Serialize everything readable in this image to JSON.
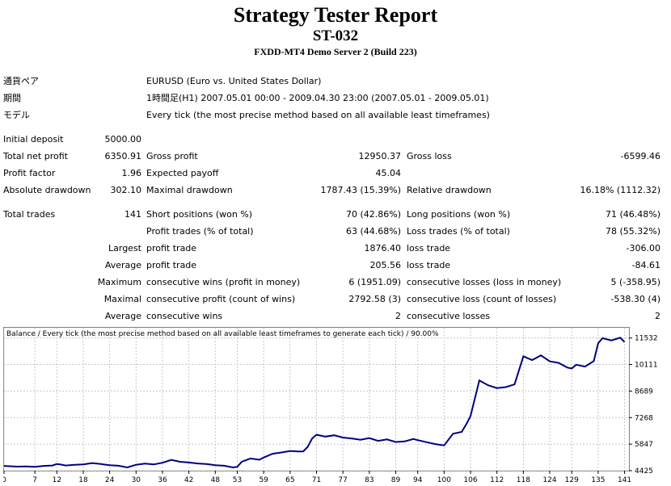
{
  "report": {
    "title": "Strategy Tester Report",
    "ea_name": "ST-032",
    "server": "FXDD-MT4 Demo Server 2 (Build 223)"
  },
  "info": {
    "symbol_label": "通貨ペア",
    "symbol_value": "EURUSD (Euro vs. United States Dollar)",
    "period_label": "期間",
    "period_value": "1時間足(H1) 2007.05.01 00:00 - 2009.04.30 23:00 (2007.05.01 - 2009.05.01)",
    "model_label": "モデル",
    "model_value": "Every tick (the most precise method based on all available least timeframes)"
  },
  "stats": {
    "initial_deposit_label": "Initial deposit",
    "initial_deposit": "5000.00",
    "total_net_profit_label": "Total net profit",
    "total_net_profit": "6350.91",
    "gross_profit_label": "Gross profit",
    "gross_profit": "12950.37",
    "gross_loss_label": "Gross loss",
    "gross_loss": "-6599.46",
    "profit_factor_label": "Profit factor",
    "profit_factor": "1.96",
    "expected_payoff_label": "Expected payoff",
    "expected_payoff": "45.04",
    "absolute_drawdown_label": "Absolute drawdown",
    "absolute_drawdown": "302.10",
    "maximal_drawdown_label": "Maximal drawdown",
    "maximal_drawdown": "1787.43 (15.39%)",
    "relative_drawdown_label": "Relative drawdown",
    "relative_drawdown": "16.18% (1112.32)",
    "total_trades_label": "Total trades",
    "total_trades": "141",
    "short_positions_label": "Short positions (won %)",
    "short_positions": "70 (42.86%)",
    "long_positions_label": "Long positions (won %)",
    "long_positions": "71 (46.48%)",
    "profit_trades_label": "Profit trades (% of total)",
    "profit_trades": "63 (44.68%)",
    "loss_trades_label": "Loss trades (% of total)",
    "loss_trades": "78 (55.32%)",
    "largest_label": "Largest",
    "largest_profit_label": "profit trade",
    "largest_profit": "1876.40",
    "largest_loss_label": "loss trade",
    "largest_loss": "-306.00",
    "average_label": "Average",
    "average_profit_label": "profit trade",
    "average_profit": "205.56",
    "average_loss_label": "loss trade",
    "average_loss": "-84.61",
    "maximum_label": "Maximum",
    "max_cons_wins_label": "consecutive wins (profit in money)",
    "max_cons_wins": "6 (1951.09)",
    "max_cons_losses_label": "consecutive losses (loss in money)",
    "max_cons_losses": "5 (-358.95)",
    "maximal_label": "Maximal",
    "maximal_cons_profit_label": "consecutive profit (count of wins)",
    "maximal_cons_profit": "2792.58 (3)",
    "maximal_cons_loss_label": "consecutive loss (count of losses)",
    "maximal_cons_loss": "-538.30 (4)",
    "average2_label": "Average",
    "avg_cons_wins_label": "consecutive wins",
    "avg_cons_wins": "2",
    "avg_cons_losses_label": "consecutive losses",
    "avg_cons_losses": "2"
  },
  "chart_data": {
    "type": "line",
    "title": "Balance / Every tick (the most precise method based on all available least timeframes to generate each tick) / 90.00%",
    "x_ticks": [
      0,
      7,
      12,
      18,
      24,
      30,
      36,
      42,
      48,
      53,
      59,
      65,
      71,
      77,
      83,
      89,
      94,
      100,
      106,
      112,
      118,
      124,
      129,
      135,
      141
    ],
    "y_ticks": [
      4425,
      5847,
      7268,
      8689,
      10111,
      11532
    ],
    "xlim": [
      0,
      142
    ],
    "ylim": [
      4425,
      12080
    ],
    "line_color": "#000080",
    "series": [
      {
        "x": [
          0,
          3,
          5,
          7,
          9,
          11,
          12,
          13,
          14,
          16,
          18,
          20,
          22,
          24,
          26,
          28,
          30,
          32,
          34,
          36,
          38,
          40,
          42,
          44,
          46,
          48,
          50,
          52,
          53,
          54,
          56,
          58,
          59,
          61,
          63,
          65,
          67,
          68,
          69,
          70,
          71,
          73,
          75,
          77,
          79,
          81,
          83,
          85,
          87,
          89,
          91,
          93,
          94,
          96,
          98,
          100,
          102,
          104,
          105,
          106,
          108,
          110,
          112,
          114,
          116,
          118,
          120,
          122,
          124,
          126,
          128,
          129,
          130,
          132,
          134,
          135,
          136,
          138,
          140,
          141
        ],
        "y": [
          4680,
          4640,
          4650,
          4630,
          4680,
          4700,
          4780,
          4750,
          4700,
          4740,
          4760,
          4830,
          4780,
          4720,
          4690,
          4600,
          4740,
          4800,
          4760,
          4850,
          5000,
          4900,
          4860,
          4810,
          4780,
          4720,
          4690,
          4600,
          4630,
          4900,
          5080,
          5010,
          5130,
          5330,
          5400,
          5480,
          5450,
          5460,
          5700,
          6150,
          6350,
          6250,
          6320,
          6200,
          6150,
          6080,
          6170,
          6020,
          6100,
          5960,
          5990,
          6120,
          6060,
          5950,
          5850,
          5780,
          6400,
          6500,
          6900,
          7350,
          9260,
          9000,
          8850,
          8900,
          9050,
          10550,
          10350,
          10600,
          10280,
          10200,
          9950,
          9900,
          10100,
          10000,
          10300,
          11250,
          11520,
          11400,
          11550,
          11320
        ]
      }
    ]
  }
}
